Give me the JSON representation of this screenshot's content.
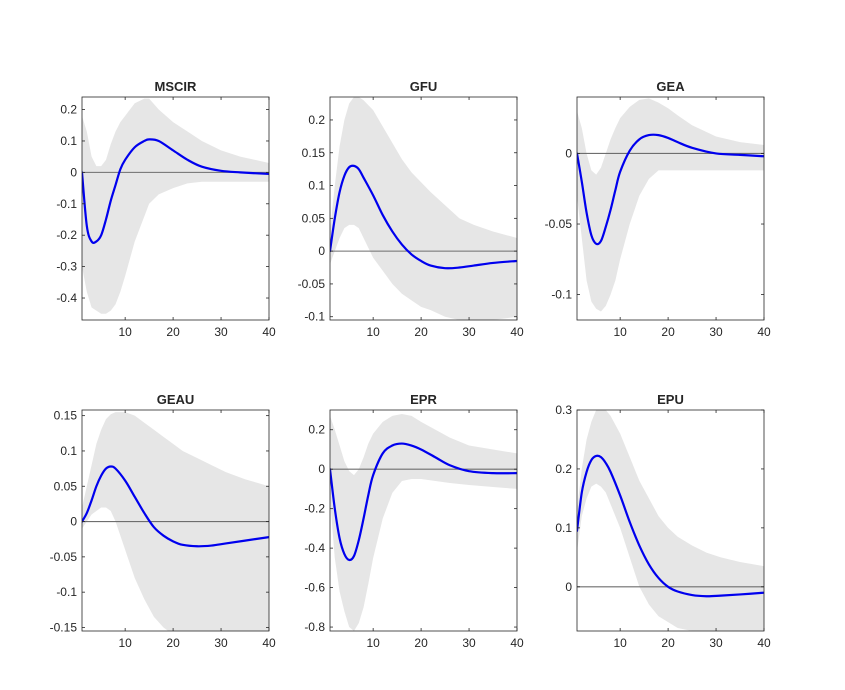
{
  "chart_data": [
    {
      "type": "line",
      "title": "MSCIR",
      "xlim": [
        1,
        40
      ],
      "ylim": [
        -0.47,
        0.24
      ],
      "xticks": [
        10,
        20,
        30,
        40
      ],
      "xtick_labels": [
        "10",
        "20",
        "30",
        "40"
      ],
      "yticks": [
        0.2,
        0.1,
        0,
        -0.1,
        -0.2,
        -0.3,
        -0.4
      ],
      "ytick_labels": [
        "0.2",
        "0.1",
        "0",
        "-0.1",
        "-0.2",
        "-0.3",
        "-0.4"
      ],
      "zero_line": 0,
      "line_color": "#0000ee",
      "band_color": "#e6e6e6",
      "x": [
        1,
        2,
        3,
        4,
        5,
        6,
        7,
        8,
        9,
        10,
        12,
        14,
        15,
        17,
        20,
        23,
        26,
        30,
        34,
        40
      ],
      "response": [
        0,
        -0.17,
        -0.22,
        -0.22,
        -0.2,
        -0.15,
        -0.09,
        -0.04,
        0.01,
        0.04,
        0.08,
        0.1,
        0.105,
        0.1,
        0.07,
        0.04,
        0.018,
        0.005,
        0,
        -0.005
      ],
      "upper": [
        0.18,
        0.13,
        0.05,
        0.02,
        0.02,
        0.04,
        0.09,
        0.13,
        0.16,
        0.18,
        0.22,
        0.235,
        0.235,
        0.2,
        0.16,
        0.13,
        0.1,
        0.07,
        0.05,
        0.03
      ],
      "lower": [
        -0.3,
        -0.38,
        -0.43,
        -0.44,
        -0.45,
        -0.45,
        -0.44,
        -0.42,
        -0.38,
        -0.33,
        -0.22,
        -0.14,
        -0.1,
        -0.07,
        -0.05,
        -0.035,
        -0.03,
        -0.03,
        -0.03,
        -0.03
      ]
    },
    {
      "type": "line",
      "title": "GFU",
      "xlim": [
        1,
        40
      ],
      "ylim": [
        -0.105,
        0.235
      ],
      "xticks": [
        10,
        20,
        30,
        40
      ],
      "xtick_labels": [
        "10",
        "20",
        "30",
        "40"
      ],
      "yticks": [
        0.2,
        0.15,
        0.1,
        0.05,
        0,
        -0.05,
        -0.1
      ],
      "ytick_labels": [
        "0.2",
        "0.15",
        "0.1",
        "0.05",
        "0",
        "-0.05",
        "-0.1"
      ],
      "zero_line": 0,
      "line_color": "#0000ee",
      "band_color": "#e6e6e6",
      "x": [
        1,
        2,
        3,
        4,
        5,
        6,
        7,
        8,
        10,
        12,
        14,
        16,
        18,
        20,
        22,
        25,
        28,
        31,
        35,
        40
      ],
      "response": [
        0,
        0.05,
        0.09,
        0.115,
        0.128,
        0.13,
        0.125,
        0.112,
        0.085,
        0.055,
        0.03,
        0.01,
        -0.005,
        -0.015,
        -0.022,
        -0.026,
        -0.025,
        -0.022,
        -0.018,
        -0.015
      ],
      "upper": [
        0.03,
        0.1,
        0.16,
        0.2,
        0.225,
        0.235,
        0.235,
        0.23,
        0.215,
        0.19,
        0.165,
        0.14,
        0.12,
        0.105,
        0.09,
        0.07,
        0.05,
        0.04,
        0.03,
        0.02
      ],
      "lower": [
        -0.02,
        0.0,
        0.02,
        0.035,
        0.04,
        0.04,
        0.035,
        0.02,
        -0.01,
        -0.03,
        -0.05,
        -0.065,
        -0.075,
        -0.085,
        -0.09,
        -0.1,
        -0.105,
        -0.105,
        -0.105,
        -0.1
      ]
    },
    {
      "type": "line",
      "title": "GEA",
      "xlim": [
        1,
        40
      ],
      "ylim": [
        -0.118,
        0.04
      ],
      "xticks": [
        10,
        20,
        30,
        40
      ],
      "xtick_labels": [
        "10",
        "20",
        "30",
        "40"
      ],
      "yticks": [
        0,
        -0.05,
        -0.1
      ],
      "ytick_labels": [
        "0",
        "-0.05",
        "-0.1"
      ],
      "zero_line": 0,
      "line_color": "#0000ee",
      "band_color": "#e6e6e6",
      "x": [
        1,
        2,
        3,
        4,
        5,
        6,
        7,
        8,
        9,
        10,
        12,
        14,
        16,
        18,
        20,
        22,
        25,
        30,
        35,
        40
      ],
      "response": [
        0,
        -0.02,
        -0.042,
        -0.058,
        -0.064,
        -0.062,
        -0.052,
        -0.04,
        -0.026,
        -0.013,
        0.002,
        0.01,
        0.013,
        0.013,
        0.011,
        0.008,
        0.004,
        0,
        -0.001,
        -0.002
      ],
      "upper": [
        0.03,
        0.018,
        0.0,
        -0.012,
        -0.015,
        -0.01,
        0.0,
        0.01,
        0.018,
        0.025,
        0.033,
        0.038,
        0.039,
        0.036,
        0.032,
        0.027,
        0.02,
        0.012,
        0.008,
        0.006
      ],
      "lower": [
        -0.03,
        -0.06,
        -0.09,
        -0.105,
        -0.11,
        -0.112,
        -0.108,
        -0.1,
        -0.09,
        -0.075,
        -0.05,
        -0.03,
        -0.018,
        -0.012,
        -0.012,
        -0.012,
        -0.012,
        -0.012,
        -0.012,
        -0.012
      ]
    },
    {
      "type": "line",
      "title": "GEAU",
      "xlim": [
        1,
        40
      ],
      "ylim": [
        -0.155,
        0.158
      ],
      "xticks": [
        10,
        20,
        30,
        40
      ],
      "xtick_labels": [
        "10",
        "20",
        "30",
        "40"
      ],
      "yticks": [
        0.15,
        0.1,
        0.05,
        0,
        -0.05,
        -0.1,
        -0.15
      ],
      "ytick_labels": [
        "0.15",
        "0.1",
        "0.05",
        "0",
        "-0.05",
        "-0.1",
        "-0.15"
      ],
      "zero_line": 0,
      "line_color": "#0000ee",
      "band_color": "#e6e6e6",
      "x": [
        1,
        2,
        3,
        4,
        5,
        6,
        7,
        8,
        10,
        12,
        14,
        16,
        18,
        20,
        22,
        25,
        28,
        31,
        35,
        40
      ],
      "response": [
        0,
        0.012,
        0.03,
        0.05,
        0.065,
        0.075,
        0.078,
        0.075,
        0.058,
        0.035,
        0.012,
        -0.008,
        -0.02,
        -0.028,
        -0.033,
        -0.035,
        -0.034,
        -0.031,
        -0.027,
        -0.022
      ],
      "upper": [
        0.02,
        0.05,
        0.08,
        0.11,
        0.13,
        0.145,
        0.152,
        0.155,
        0.155,
        0.15,
        0.14,
        0.13,
        0.12,
        0.11,
        0.1,
        0.09,
        0.08,
        0.07,
        0.06,
        0.05
      ],
      "lower": [
        -0.01,
        0.0,
        0.01,
        0.015,
        0.02,
        0.02,
        0.015,
        0.0,
        -0.04,
        -0.08,
        -0.11,
        -0.135,
        -0.15,
        -0.16,
        -0.165,
        -0.165,
        -0.165,
        -0.16,
        -0.155,
        -0.155
      ]
    },
    {
      "type": "line",
      "title": "EPR",
      "xlim": [
        1,
        40
      ],
      "ylim": [
        -0.82,
        0.3
      ],
      "xticks": [
        10,
        20,
        30,
        40
      ],
      "xtick_labels": [
        "10",
        "20",
        "30",
        "40"
      ],
      "yticks": [
        0.2,
        0,
        -0.2,
        -0.4,
        -0.6,
        -0.8
      ],
      "ytick_labels": [
        "0.2",
        "0",
        "-0.2",
        "-0.4",
        "-0.6",
        "-0.8"
      ],
      "zero_line": 0,
      "line_color": "#0000ee",
      "band_color": "#e6e6e6",
      "x": [
        1,
        2,
        3,
        4,
        5,
        6,
        7,
        8,
        9,
        10,
        12,
        14,
        16,
        18,
        20,
        23,
        26,
        30,
        35,
        40
      ],
      "response": [
        0,
        -0.2,
        -0.35,
        -0.43,
        -0.46,
        -0.44,
        -0.36,
        -0.25,
        -0.13,
        -0.03,
        0.08,
        0.12,
        0.13,
        0.12,
        0.1,
        0.06,
        0.02,
        -0.01,
        -0.02,
        -0.02
      ],
      "upper": [
        0.27,
        0.2,
        0.12,
        0.04,
        -0.01,
        -0.03,
        0.0,
        0.06,
        0.13,
        0.18,
        0.24,
        0.27,
        0.28,
        0.27,
        0.24,
        0.2,
        0.16,
        0.12,
        0.1,
        0.08
      ],
      "lower": [
        -0.15,
        -0.45,
        -0.62,
        -0.72,
        -0.8,
        -0.82,
        -0.78,
        -0.7,
        -0.58,
        -0.45,
        -0.25,
        -0.12,
        -0.06,
        -0.05,
        -0.05,
        -0.06,
        -0.07,
        -0.08,
        -0.09,
        -0.1
      ]
    },
    {
      "type": "line",
      "title": "EPU",
      "xlim": [
        1,
        40
      ],
      "ylim": [
        -0.075,
        0.3
      ],
      "xticks": [
        10,
        20,
        30,
        40
      ],
      "xtick_labels": [
        "10",
        "20",
        "30",
        "40"
      ],
      "yticks": [
        0.3,
        0.2,
        0.1,
        0
      ],
      "ytick_labels": [
        "0.3",
        "0.2",
        "0.1",
        "0"
      ],
      "zero_line": 0,
      "line_color": "#0000ee",
      "band_color": "#e6e6e6",
      "x": [
        1,
        2,
        3,
        4,
        5,
        6,
        7,
        8,
        10,
        12,
        14,
        16,
        18,
        20,
        22,
        25,
        28,
        31,
        35,
        40
      ],
      "response": [
        0.095,
        0.16,
        0.195,
        0.215,
        0.222,
        0.22,
        0.21,
        0.195,
        0.155,
        0.11,
        0.07,
        0.038,
        0.015,
        0,
        -0.008,
        -0.014,
        -0.016,
        -0.015,
        -0.013,
        -0.01
      ],
      "upper": [
        0.13,
        0.2,
        0.25,
        0.28,
        0.3,
        0.305,
        0.3,
        0.29,
        0.26,
        0.22,
        0.18,
        0.15,
        0.12,
        0.1,
        0.085,
        0.07,
        0.058,
        0.05,
        0.042,
        0.035
      ],
      "lower": [
        0.06,
        0.12,
        0.15,
        0.17,
        0.175,
        0.17,
        0.16,
        0.14,
        0.1,
        0.05,
        0.0,
        -0.03,
        -0.05,
        -0.06,
        -0.07,
        -0.075,
        -0.075,
        -0.075,
        -0.075,
        -0.075
      ]
    }
  ]
}
